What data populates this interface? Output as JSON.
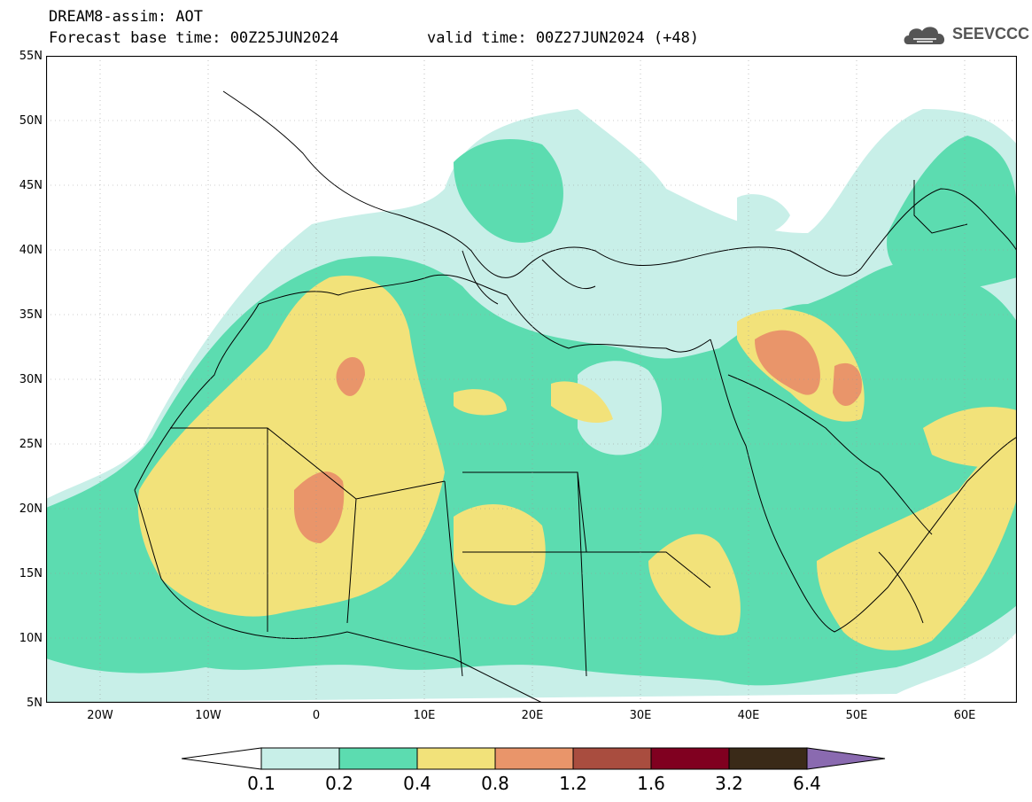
{
  "header": {
    "title": "DREAM8-assim: AOT",
    "base_time": "Forecast base time: 00Z25JUN2024",
    "valid_time": "valid time: 00Z27JUN2024 (+48)"
  },
  "logo": {
    "text": "SEEVCCC",
    "icon": "cloud-icon"
  },
  "axes": {
    "lat_labels": [
      "55N",
      "50N",
      "45N",
      "40N",
      "35N",
      "30N",
      "25N",
      "20N",
      "15N",
      "10N",
      "5N"
    ],
    "lon_labels": [
      "20W",
      "10W",
      "0",
      "10E",
      "20E",
      "30E",
      "40E",
      "50E",
      "60E"
    ]
  },
  "legend": {
    "levels": [
      "0.1",
      "0.2",
      "0.4",
      "0.8",
      "1.2",
      "1.6",
      "3.2",
      "6.4"
    ],
    "colors": [
      "#c8efe8",
      "#5cdcb0",
      "#f2e27a",
      "#e9956a",
      "#a94d3f",
      "#800020",
      "#3a2a18",
      "#8a6ab0"
    ]
  },
  "colors": {
    "c1": "#c8efe8",
    "c2": "#5cdcb0",
    "c3": "#f2e27a",
    "c4": "#e9956a",
    "border": "#000000"
  }
}
